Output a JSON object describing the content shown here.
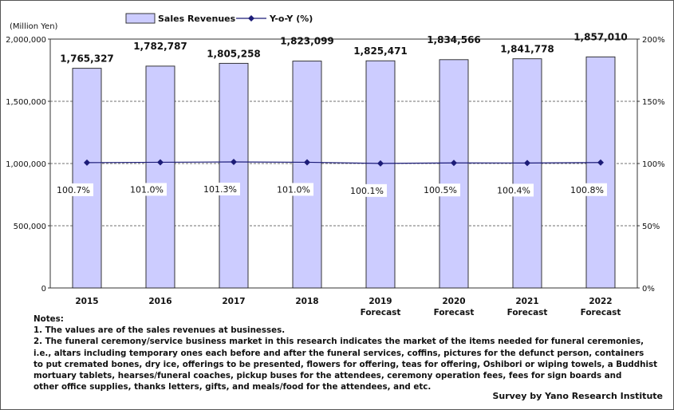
{
  "chart_data": {
    "type": "bar+line",
    "unit_label": "(Million Yen)",
    "categories": [
      {
        "year": "2015",
        "sub": ""
      },
      {
        "year": "2016",
        "sub": ""
      },
      {
        "year": "2017",
        "sub": ""
      },
      {
        "year": "2018",
        "sub": ""
      },
      {
        "year": "2019",
        "sub": "Forecast"
      },
      {
        "year": "2020",
        "sub": "Forecast"
      },
      {
        "year": "2021",
        "sub": "Forecast"
      },
      {
        "year": "2022",
        "sub": "Forecast"
      }
    ],
    "series": [
      {
        "name": "Sales Revenues",
        "type": "bar",
        "axis": "left",
        "values": [
          1765327,
          1782787,
          1805258,
          1823099,
          1825471,
          1834566,
          1841778,
          1857010
        ],
        "labels": [
          "1,765,327",
          "1,782,787",
          "1,805,258",
          "1,823,099",
          "1,825,471",
          "1,834,566",
          "1,841,778",
          "1,857,010"
        ]
      },
      {
        "name": "Y-o-Y (%)",
        "type": "line",
        "axis": "right",
        "values": [
          100.7,
          101.0,
          101.3,
          101.0,
          100.1,
          100.5,
          100.4,
          100.8
        ],
        "labels": [
          "100.7%",
          "101.0%",
          "101.3%",
          "101.0%",
          "100.1%",
          "100.5%",
          "100.4%",
          "100.8%"
        ]
      }
    ],
    "left_axis": {
      "min": 0,
      "max": 2000000,
      "ticks": [
        0,
        500000,
        1000000,
        1500000,
        2000000
      ],
      "tick_labels": [
        "0",
        "500,000",
        "1,000,000",
        "1,500,000",
        "2,000,000"
      ]
    },
    "right_axis": {
      "min": 0,
      "max": 200,
      "ticks": [
        0,
        50,
        100,
        150,
        200
      ],
      "tick_labels": [
        "0%",
        "50%",
        "100%",
        "150%",
        "200%"
      ]
    },
    "gridlines": true,
    "legend_position": "top"
  },
  "colors": {
    "bar_fill": "#ccccff",
    "bar_stroke": "#222222",
    "line": "#1c1c78",
    "marker": "#1c1c78",
    "grid": "#444444"
  },
  "notes": {
    "heading": "Notes:",
    "lines": [
      "1. The values are of the sales revenues at businesses.",
      "2. The funeral ceremony/service business market in this research indicates the market of the items needed for funeral ceremonies,",
      "i.e., altars including temporary ones each before and after the funeral services, coffins, pictures for the defunct person, containers",
      "to put cremated bones, dry ice, offerings to be presented, flowers for offering, teas for offering, Oshibori or wiping towels, a Buddhist",
      "mortuary tablets, hearses/funeral coaches, pickup buses for the attendees, ceremony operation fees, fees for sign boards and",
      "other office supplies, thanks letters, gifts, and meals/food for the attendees, and etc."
    ]
  },
  "source": "Survey by Yano Research Institute"
}
